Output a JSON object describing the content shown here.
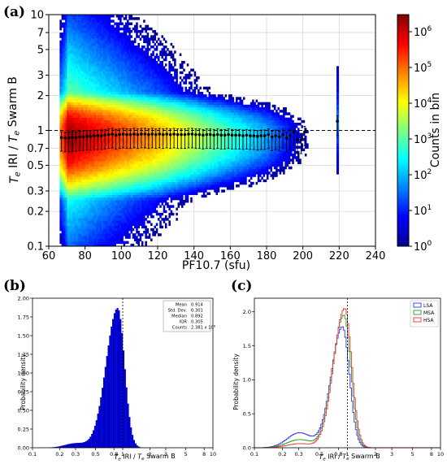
{
  "panels": {
    "a": {
      "letter": "(a)",
      "chart_data": {
        "type": "heatmap",
        "title": "",
        "xlabel": "PF10.7 (sfu)",
        "ylabel_parts": [
          "T",
          "e",
          " IRI / ",
          "T",
          "e",
          " Swarm B"
        ],
        "xlim": [
          60,
          240
        ],
        "ylim": [
          0.1,
          10
        ],
        "yscale": "log",
        "xticks": [
          "60",
          "80",
          "100",
          "120",
          "140",
          "160",
          "180",
          "200",
          "220",
          "240"
        ],
        "yticks": [
          {
            "v": 0.1,
            "label": "0.1"
          },
          {
            "v": 0.2,
            "label": "0.2"
          },
          {
            "v": 0.3,
            "label": "0.3"
          },
          {
            "v": 0.5,
            "label": "0.5"
          },
          {
            "v": 0.7,
            "label": "0.7"
          },
          {
            "v": 1,
            "label": "1"
          },
          {
            "v": 2,
            "label": "2"
          },
          {
            "v": 3,
            "label": "3"
          },
          {
            "v": 5,
            "label": "5"
          },
          {
            "v": 7,
            "label": "7"
          },
          {
            "v": 10,
            "label": "10"
          }
        ],
        "reference_line": 1,
        "grid": true,
        "colorbar": {
          "label": "Counts in bin",
          "scale": "log",
          "range": [
            1,
            3000000
          ],
          "ticks": [
            {
              "v": 1,
              "base": "10",
              "exp": "0"
            },
            {
              "v": 10,
              "base": "10",
              "exp": "1"
            },
            {
              "v": 100,
              "base": "10",
              "exp": "2"
            },
            {
              "v": 1000,
              "base": "10",
              "exp": "3"
            },
            {
              "v": 10000,
              "base": "10",
              "exp": "4"
            },
            {
              "v": 100000,
              "base": "10",
              "exp": "5"
            },
            {
              "v": 1000000,
              "base": "10",
              "exp": "6"
            }
          ],
          "colors": [
            "#00008f",
            "#0000ff",
            "#0080ff",
            "#00ffff",
            "#80ff80",
            "#ffff00",
            "#ff8000",
            "#ff0000",
            "#800000"
          ]
        },
        "median_points": {
          "x": [
            67,
            69,
            71,
            73,
            75,
            77,
            79,
            81,
            83,
            85,
            87,
            89,
            91,
            93,
            95,
            97,
            99,
            101,
            103,
            105,
            107,
            109,
            111,
            113,
            115,
            117,
            119,
            121,
            123,
            125,
            127,
            129,
            131,
            133,
            135,
            137,
            139,
            141,
            143,
            145,
            147,
            149,
            151,
            153,
            155,
            157,
            159,
            161,
            163,
            165,
            167,
            169,
            171,
            173,
            175,
            177,
            179,
            181,
            183,
            185,
            187,
            189,
            191,
            193,
            195,
            197,
            199,
            201,
            219
          ],
          "y": [
            0.87,
            0.86,
            0.86,
            0.87,
            0.87,
            0.88,
            0.88,
            0.89,
            0.89,
            0.9,
            0.9,
            0.9,
            0.91,
            0.92,
            0.93,
            0.91,
            0.92,
            0.93,
            0.92,
            0.92,
            0.93,
            0.92,
            0.93,
            0.93,
            0.92,
            0.93,
            0.92,
            0.93,
            0.92,
            0.93,
            0.92,
            0.93,
            0.92,
            0.92,
            0.92,
            0.93,
            0.93,
            0.92,
            0.92,
            0.91,
            0.92,
            0.92,
            0.91,
            0.92,
            0.91,
            0.91,
            0.92,
            0.91,
            0.91,
            0.91,
            0.9,
            0.91,
            0.9,
            0.9,
            0.89,
            0.9,
            0.9,
            0.92,
            0.88,
            0.9,
            0.88,
            0.92,
            0.86,
            0.9,
            0.97,
            0.83,
            0.83,
            0.97,
            1.2
          ],
          "err_low": 0.76,
          "err_high": 1.12
        }
      }
    },
    "b": {
      "letter": "(b)",
      "chart_data": {
        "type": "bar",
        "title": "",
        "xlabel_parts": [
          "T",
          "e",
          " IRI / ",
          "T",
          "e",
          " Swarm B"
        ],
        "ylabel": "Probability density",
        "xscale": "log",
        "xlim": [
          0.1,
          10
        ],
        "ylim": [
          0,
          2.0
        ],
        "xticks": [
          {
            "v": 0.1,
            "label": "0.1"
          },
          {
            "v": 0.2,
            "label": "0.2"
          },
          {
            "v": 0.3,
            "label": "0.3"
          },
          {
            "v": 0.5,
            "label": "0.5"
          },
          {
            "v": 0.8,
            "label": "0.8"
          },
          {
            "v": 1,
            "label": "1"
          },
          {
            "v": 2,
            "label": "2"
          },
          {
            "v": 3,
            "label": "3"
          },
          {
            "v": 5,
            "label": "5"
          },
          {
            "v": 8,
            "label": "8"
          },
          {
            "v": 10,
            "label": "10"
          }
        ],
        "yticks": [
          "0.00",
          "0.25",
          "0.50",
          "0.75",
          "1.00",
          "1.25",
          "1.50",
          "1.75",
          "2.00"
        ],
        "reference_line": 1,
        "color": "#0000cc",
        "stats": [
          {
            "name": "Mean",
            "value": "0.914"
          },
          {
            "name": "Std. Dev.",
            "value": "0.301"
          },
          {
            "name": "Median",
            "value": "0.892"
          },
          {
            "name": "IQR",
            "value": "0.305"
          },
          {
            "name": "Counts",
            "value": "2.381 x 10",
            "exp": "6"
          }
        ],
        "peak_x": 0.88,
        "peak_y": 1.87
      }
    },
    "c": {
      "letter": "(c)",
      "chart_data": {
        "type": "line",
        "title": "",
        "xlabel_parts": [
          "T",
          "e",
          " IRI / ",
          "T",
          "e",
          " Swarm B"
        ],
        "ylabel": "Probability density",
        "xscale": "log",
        "xlim": [
          0.1,
          10
        ],
        "ylim": [
          0,
          2.2
        ],
        "xticks": [
          {
            "v": 0.1,
            "label": "0.1"
          },
          {
            "v": 0.2,
            "label": "0.2"
          },
          {
            "v": 0.3,
            "label": "0.3"
          },
          {
            "v": 0.5,
            "label": "0.5"
          },
          {
            "v": 0.8,
            "label": "0.8"
          },
          {
            "v": 1,
            "label": "1"
          },
          {
            "v": 2,
            "label": "2"
          },
          {
            "v": 3,
            "label": "3"
          },
          {
            "v": 5,
            "label": "5"
          },
          {
            "v": 8,
            "label": "8"
          },
          {
            "v": 10,
            "label": "10"
          }
        ],
        "yticks": [
          "0.0",
          "0.5",
          "1.0",
          "1.5",
          "2.0"
        ],
        "reference_line": 1,
        "legend_position": "top-right",
        "series": [
          {
            "name": "LSA",
            "color": "#3333ee",
            "peak_x": 0.87,
            "peak_y": 1.78,
            "low_shoulder": 0.22
          },
          {
            "name": "MSA",
            "color": "#22a022",
            "peak_x": 0.9,
            "peak_y": 1.95,
            "low_shoulder": 0.12
          },
          {
            "name": "HSA",
            "color": "#ee3333",
            "peak_x": 0.92,
            "peak_y": 2.05,
            "low_shoulder": 0.06
          }
        ]
      }
    }
  }
}
